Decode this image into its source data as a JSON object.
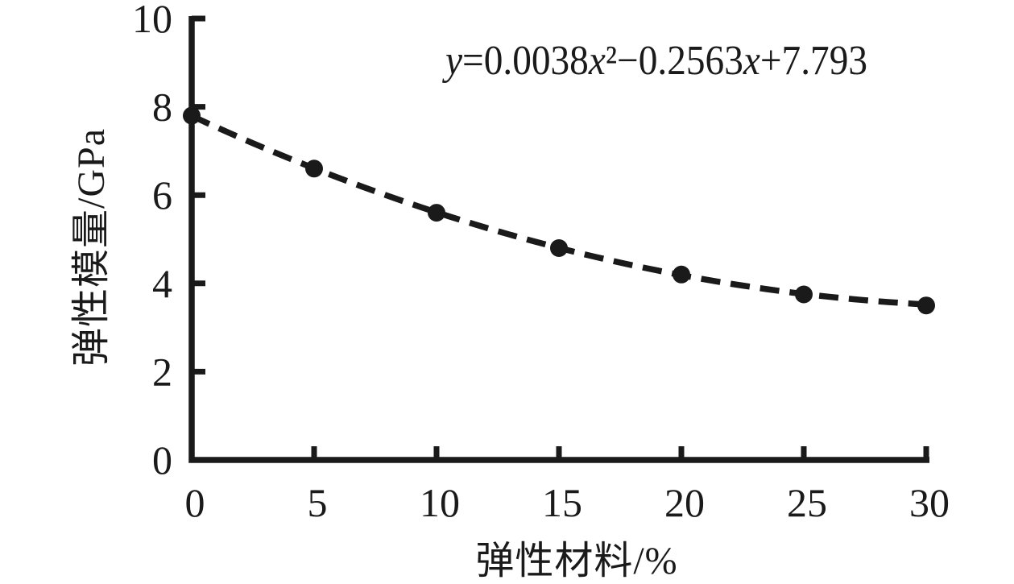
{
  "figure": {
    "background": "#ffffff",
    "ink_color": "#1a1a1a"
  },
  "chart_data": {
    "type": "scatter",
    "xlabel": "弹性材料/%",
    "ylabel": "弹性模量/GPa",
    "x": [
      0,
      5,
      10,
      15,
      20,
      25,
      30
    ],
    "y": [
      7.8,
      6.6,
      5.6,
      4.8,
      4.2,
      3.75,
      3.5
    ],
    "marker": "filled-circle",
    "trendline": {
      "type": "quadratic-fit",
      "coefficients": {
        "a": 0.0038,
        "b": -0.2563,
        "c": 7.793
      },
      "line_style": "dashed"
    },
    "equation_label": "y=0.0038x²−0.2563x+7.793",
    "xlim": [
      0,
      30
    ],
    "ylim": [
      0,
      10
    ],
    "x_ticks": [
      0,
      5,
      10,
      15,
      20,
      25,
      30
    ],
    "y_ticks": [
      0,
      2,
      4,
      6,
      8,
      10
    ],
    "grid": false,
    "legend": "none"
  }
}
